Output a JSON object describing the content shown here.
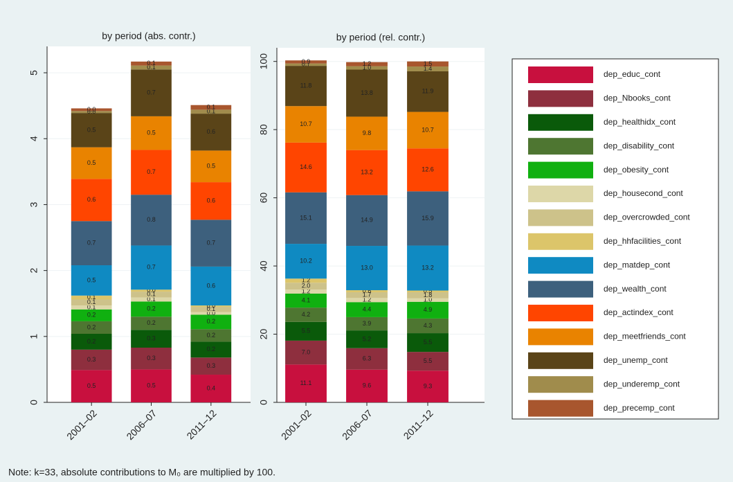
{
  "chart_data": [
    {
      "type": "stacked_bar",
      "title": "by period (abs. contr.)",
      "categories": [
        "2001–02",
        "2006–07",
        "2011–12"
      ],
      "ylim": [
        0,
        5.4
      ],
      "yticks": [
        0,
        1,
        2,
        3,
        4,
        5
      ],
      "grid": true,
      "series": [
        {
          "name": "dep_educ_cont",
          "color": "#c8103e",
          "values": [
            0.49,
            0.5,
            0.42
          ],
          "value_labels": [
            "0.5",
            "0.5",
            "0.4"
          ]
        },
        {
          "name": "dep_Nbooks_cont",
          "color": "#8e2f3e",
          "values": [
            0.31,
            0.33,
            0.26
          ],
          "value_labels": [
            "0.3",
            "0.3",
            "0.3"
          ]
        },
        {
          "name": "dep_healthidx_cont",
          "color": "#0a5a0a",
          "values": [
            0.24,
            0.27,
            0.24
          ],
          "value_labels": [
            "0.2",
            "0.3",
            "0.2"
          ]
        },
        {
          "name": "dep_disability_cont",
          "color": "#4e7631",
          "values": [
            0.19,
            0.2,
            0.19
          ],
          "value_labels": [
            "0.2",
            "0.2",
            "0.2"
          ]
        },
        {
          "name": "dep_obesity_cont",
          "color": "#10b010",
          "values": [
            0.18,
            0.23,
            0.22
          ],
          "value_labels": [
            "0.2",
            "0.2",
            "0.2"
          ]
        },
        {
          "name": "dep_housecond_cont",
          "color": "#ddd7a8",
          "values": [
            0.06,
            0.06,
            0.04
          ],
          "value_labels": [
            "0.1",
            "0.1",
            "0.0"
          ]
        },
        {
          "name": "dep_overcrowded_cont",
          "color": "#cdc28a",
          "values": [
            0.09,
            0.09,
            0.08
          ],
          "value_labels": [
            "0.1",
            "0.1",
            "0.1"
          ]
        },
        {
          "name": "dep_hhfacilities_cont",
          "color": "#dcc56a",
          "values": [
            0.06,
            0.03,
            0.02
          ],
          "value_labels": [
            "0.1",
            "0.0",
            "0.0"
          ]
        },
        {
          "name": "dep_matdep_cont",
          "color": "#0f8ac2",
          "values": [
            0.46,
            0.67,
            0.59
          ],
          "value_labels": [
            "0.5",
            "0.7",
            "0.6"
          ]
        },
        {
          "name": "dep_wealth_cont",
          "color": "#3d607d",
          "values": [
            0.67,
            0.77,
            0.71
          ],
          "value_labels": [
            "0.7",
            "0.8",
            "0.7"
          ]
        },
        {
          "name": "dep_actindex_cont",
          "color": "#ff4500",
          "values": [
            0.64,
            0.68,
            0.57
          ],
          "value_labels": [
            "0.6",
            "0.7",
            "0.6"
          ]
        },
        {
          "name": "dep_meetfriends_cont",
          "color": "#e98300",
          "values": [
            0.48,
            0.51,
            0.48
          ],
          "value_labels": [
            "0.5",
            "0.5",
            "0.5"
          ]
        },
        {
          "name": "dep_unemp_cont",
          "color": "#5a4418",
          "values": [
            0.52,
            0.71,
            0.56
          ],
          "value_labels": [
            "0.5",
            "0.7",
            "0.6"
          ]
        },
        {
          "name": "dep_underemp_cont",
          "color": "#a08c4c",
          "values": [
            0.03,
            0.06,
            0.06
          ],
          "value_labels": [
            "0.0",
            "0.1",
            "0.1"
          ]
        },
        {
          "name": "dep_precemp_cont",
          "color": "#a8562e",
          "values": [
            0.04,
            0.06,
            0.07
          ],
          "value_labels": [
            "0.0",
            "0.1",
            "0.1"
          ]
        }
      ]
    },
    {
      "type": "stacked_bar",
      "title": "by period (rel. contr.)",
      "categories": [
        "2001–02",
        "2006–07",
        "2011–12"
      ],
      "ylim": [
        0,
        104
      ],
      "yticks": [
        0,
        20,
        40,
        60,
        80,
        100
      ],
      "grid": true,
      "series": [
        {
          "name": "dep_educ_cont",
          "color": "#c8103e",
          "values": [
            11.1,
            9.6,
            9.3
          ],
          "value_labels": [
            "11.1",
            "9.6",
            "9.3"
          ]
        },
        {
          "name": "dep_Nbooks_cont",
          "color": "#8e2f3e",
          "values": [
            7.0,
            6.3,
            5.5
          ],
          "value_labels": [
            "7.0",
            "6.3",
            "5.5"
          ]
        },
        {
          "name": "dep_healthidx_cont",
          "color": "#0a5a0a",
          "values": [
            5.5,
            5.2,
            5.5
          ],
          "value_labels": [
            "5.5",
            "5.2",
            "5.5"
          ]
        },
        {
          "name": "dep_disability_cont",
          "color": "#4e7631",
          "values": [
            4.2,
            3.9,
            4.3
          ],
          "value_labels": [
            "4.2",
            "3.9",
            "4.3"
          ]
        },
        {
          "name": "dep_obesity_cont",
          "color": "#10b010",
          "values": [
            4.1,
            4.4,
            4.9
          ],
          "value_labels": [
            "4.1",
            "4.4",
            "4.9"
          ]
        },
        {
          "name": "dep_housecond_cont",
          "color": "#ddd7a8",
          "values": [
            1.2,
            1.2,
            1.0
          ],
          "value_labels": [
            "1.2",
            "1.2",
            "1.0"
          ]
        },
        {
          "name": "dep_overcrowded_cont",
          "color": "#cdc28a",
          "values": [
            2.0,
            1.7,
            1.8
          ],
          "value_labels": [
            "2.0",
            "1.7",
            "1.8"
          ]
        },
        {
          "name": "dep_hhfacilities_cont",
          "color": "#dcc56a",
          "values": [
            1.2,
            0.6,
            0.5
          ],
          "value_labels": [
            "1.2",
            "0.6",
            "0.5"
          ]
        },
        {
          "name": "dep_matdep_cont",
          "color": "#0f8ac2",
          "values": [
            10.2,
            13.0,
            13.2
          ],
          "value_labels": [
            "10.2",
            "13.0",
            "13.2"
          ]
        },
        {
          "name": "dep_wealth_cont",
          "color": "#3d607d",
          "values": [
            15.1,
            14.9,
            15.9
          ],
          "value_labels": [
            "15.1",
            "14.9",
            "15.9"
          ]
        },
        {
          "name": "dep_actindex_cont",
          "color": "#ff4500",
          "values": [
            14.6,
            13.2,
            12.6
          ],
          "value_labels": [
            "14.6",
            "13.2",
            "12.6"
          ]
        },
        {
          "name": "dep_meetfriends_cont",
          "color": "#e98300",
          "values": [
            10.7,
            9.8,
            10.7
          ],
          "value_labels": [
            "10.7",
            "9.8",
            "10.7"
          ]
        },
        {
          "name": "dep_unemp_cont",
          "color": "#5a4418",
          "values": [
            11.8,
            13.8,
            11.9
          ],
          "value_labels": [
            "11.8",
            "13.8",
            "11.9"
          ]
        },
        {
          "name": "dep_underemp_cont",
          "color": "#a08c4c",
          "values": [
            0.7,
            1.0,
            1.4
          ],
          "value_labels": [
            "0.7",
            "1.0",
            "1.4"
          ]
        },
        {
          "name": "dep_precemp_cont",
          "color": "#a8562e",
          "values": [
            0.9,
            1.2,
            1.5
          ],
          "value_labels": [
            "0.9",
            "1.2",
            "1.5"
          ]
        }
      ]
    }
  ],
  "note": "Note: k=33, absolute contributions to M₀ are multiplied by 100."
}
